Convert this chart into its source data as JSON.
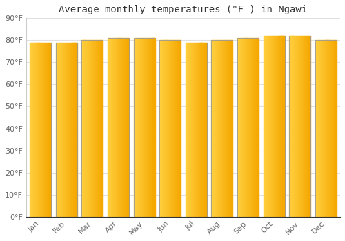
{
  "title": "Average monthly temperatures (°F ) in Ngawi",
  "months": [
    "Jan",
    "Feb",
    "Mar",
    "Apr",
    "May",
    "Jun",
    "Jul",
    "Aug",
    "Sep",
    "Oct",
    "Nov",
    "Dec"
  ],
  "values": [
    79,
    79,
    80,
    81,
    81,
    80,
    79,
    80,
    81,
    82,
    82,
    80
  ],
  "bar_color_left": "#FFD040",
  "bar_color_right": "#F5A800",
  "bar_color_edge": "#999999",
  "ylim": [
    0,
    90
  ],
  "yticks": [
    0,
    10,
    20,
    30,
    40,
    50,
    60,
    70,
    80,
    90
  ],
  "ytick_labels": [
    "0°F",
    "10°F",
    "20°F",
    "30°F",
    "40°F",
    "50°F",
    "60°F",
    "70°F",
    "80°F",
    "90°F"
  ],
  "bg_color": "#ffffff",
  "grid_color": "#e0e0e0",
  "title_fontsize": 10,
  "tick_fontsize": 8,
  "bar_width": 0.82
}
